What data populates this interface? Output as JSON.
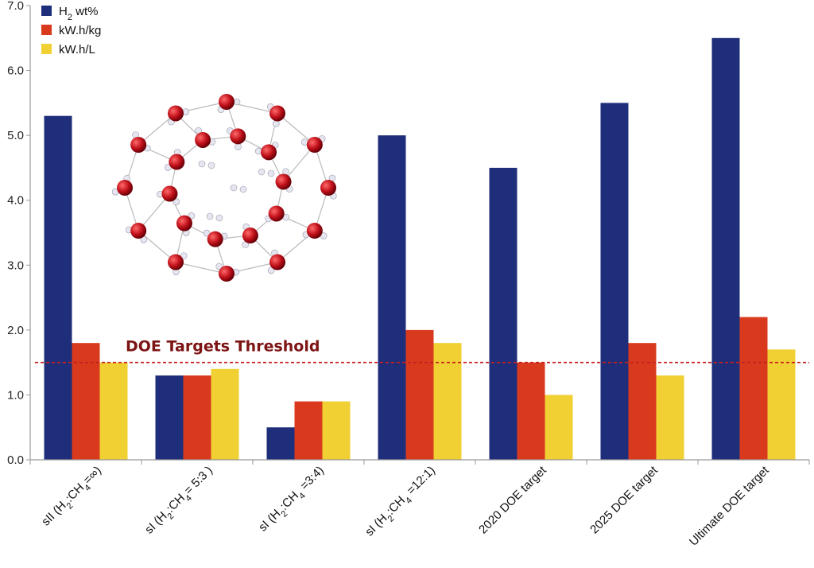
{
  "chart_data": {
    "type": "bar",
    "categories": [
      {
        "parts": [
          {
            "t": "sII (H"
          },
          {
            "t": "2",
            "sub": true
          },
          {
            "t": ":CH"
          },
          {
            "t": "4",
            "sub": true
          },
          {
            "t": "=∞)"
          }
        ]
      },
      {
        "parts": [
          {
            "t": "sI (H"
          },
          {
            "t": "2",
            "sub": true
          },
          {
            "t": ":CH"
          },
          {
            "t": "4",
            "sub": true
          },
          {
            "t": "= 5:3 )"
          }
        ]
      },
      {
        "parts": [
          {
            "t": "sI (H"
          },
          {
            "t": "2",
            "sub": true
          },
          {
            "t": ":CH"
          },
          {
            "t": "4",
            "sub": true
          },
          {
            "t": " =3:4)"
          }
        ]
      },
      {
        "parts": [
          {
            "t": "sI (H"
          },
          {
            "t": "2",
            "sub": true
          },
          {
            "t": ":CH"
          },
          {
            "t": "4",
            "sub": true
          },
          {
            "t": " =12:1)"
          }
        ]
      },
      {
        "parts": [
          {
            "t": "2020 DOE target"
          }
        ]
      },
      {
        "parts": [
          {
            "t": "2025 DOE target"
          }
        ]
      },
      {
        "parts": [
          {
            "t": "Ultimate DOE target"
          }
        ]
      }
    ],
    "series": [
      {
        "name_parts": [
          {
            "t": "H"
          },
          {
            "t": "2",
            "sub": true
          },
          {
            "t": " wt%"
          }
        ],
        "color": "#1f2e7a",
        "values": [
          5.3,
          1.3,
          0.5,
          5.0,
          4.5,
          5.5,
          6.5
        ]
      },
      {
        "name_parts": [
          {
            "t": "kW.h/kg"
          }
        ],
        "color": "#d93a1e",
        "values": [
          1.8,
          1.3,
          0.9,
          2.0,
          1.5,
          1.8,
          2.2
        ]
      },
      {
        "name_parts": [
          {
            "t": "kW.h/L"
          }
        ],
        "color": "#f0d032",
        "values": [
          1.5,
          1.4,
          0.9,
          1.8,
          1.0,
          1.3,
          1.7
        ]
      }
    ],
    "ylim": [
      0,
      7
    ],
    "yticks": [
      "0.0",
      "1.0",
      "2.0",
      "3.0",
      "4.0",
      "5.0",
      "6.0",
      "7.0"
    ],
    "threshold": {
      "value": 1.5,
      "label": "DOE Targets Threshold",
      "color": "#c81e1e"
    },
    "legend_position": "top-left",
    "grid": false
  }
}
